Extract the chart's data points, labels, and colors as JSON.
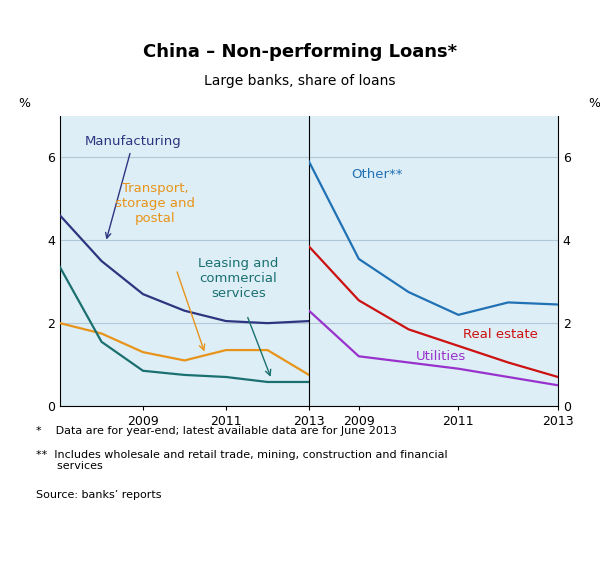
{
  "title": "China – Non-performing Loans*",
  "subtitle": "Large banks, share of loans",
  "left_panel": {
    "manufacturing": {
      "years": [
        2007,
        2008,
        2009,
        2010,
        2011,
        2012,
        2013
      ],
      "values": [
        4.6,
        3.5,
        2.7,
        2.3,
        2.05,
        2.0,
        2.05
      ],
      "color": "#2e3580",
      "label": "Manufacturing"
    },
    "transport": {
      "years": [
        2007,
        2008,
        2009,
        2010,
        2011,
        2012,
        2013
      ],
      "values": [
        2.0,
        1.75,
        1.3,
        1.1,
        1.35,
        1.35,
        0.75
      ],
      "color": "#e8941a",
      "label": "Transport,\nstorage and\npostal"
    },
    "leasing": {
      "years": [
        2007,
        2008,
        2009,
        2010,
        2011,
        2012,
        2013
      ],
      "values": [
        3.35,
        1.55,
        0.85,
        0.75,
        0.7,
        0.58,
        0.58
      ],
      "color": "#1a7070",
      "label": "Leasing and\ncommercial\nservices"
    }
  },
  "right_panel": {
    "other": {
      "years": [
        2008,
        2009,
        2010,
        2011,
        2012,
        2013
      ],
      "values": [
        5.9,
        3.55,
        2.75,
        2.2,
        2.5,
        2.45
      ],
      "color": "#2171b5",
      "label": "Other**"
    },
    "real_estate": {
      "years": [
        2008,
        2009,
        2010,
        2011,
        2012,
        2013
      ],
      "values": [
        3.85,
        2.55,
        1.85,
        1.45,
        1.05,
        0.7
      ],
      "color": "#cc1111",
      "label": "Real estate"
    },
    "utilities": {
      "years": [
        2008,
        2009,
        2010,
        2011,
        2012,
        2013
      ],
      "values": [
        2.3,
        1.2,
        1.05,
        0.9,
        0.7,
        0.5
      ],
      "color": "#9932cc",
      "label": "Utilities"
    }
  },
  "ylim": [
    0,
    7
  ],
  "yticks": [
    0,
    2,
    4,
    6
  ],
  "left_xlim": [
    2007,
    2013
  ],
  "right_xlim": [
    2008,
    2013
  ],
  "left_xticks": [
    2009,
    2011,
    2013
  ],
  "right_xticks": [
    2009,
    2011,
    2013
  ],
  "bg_color": "#ddeef6",
  "grid_color": "#b0c8d8",
  "footnote1": "*    Data are for year-end; latest available data are for June 2013",
  "footnote2": "**  Includes wholesale and retail trade, mining, construction and financial\n     services",
  "footnote3": "Source: banks’ reports"
}
